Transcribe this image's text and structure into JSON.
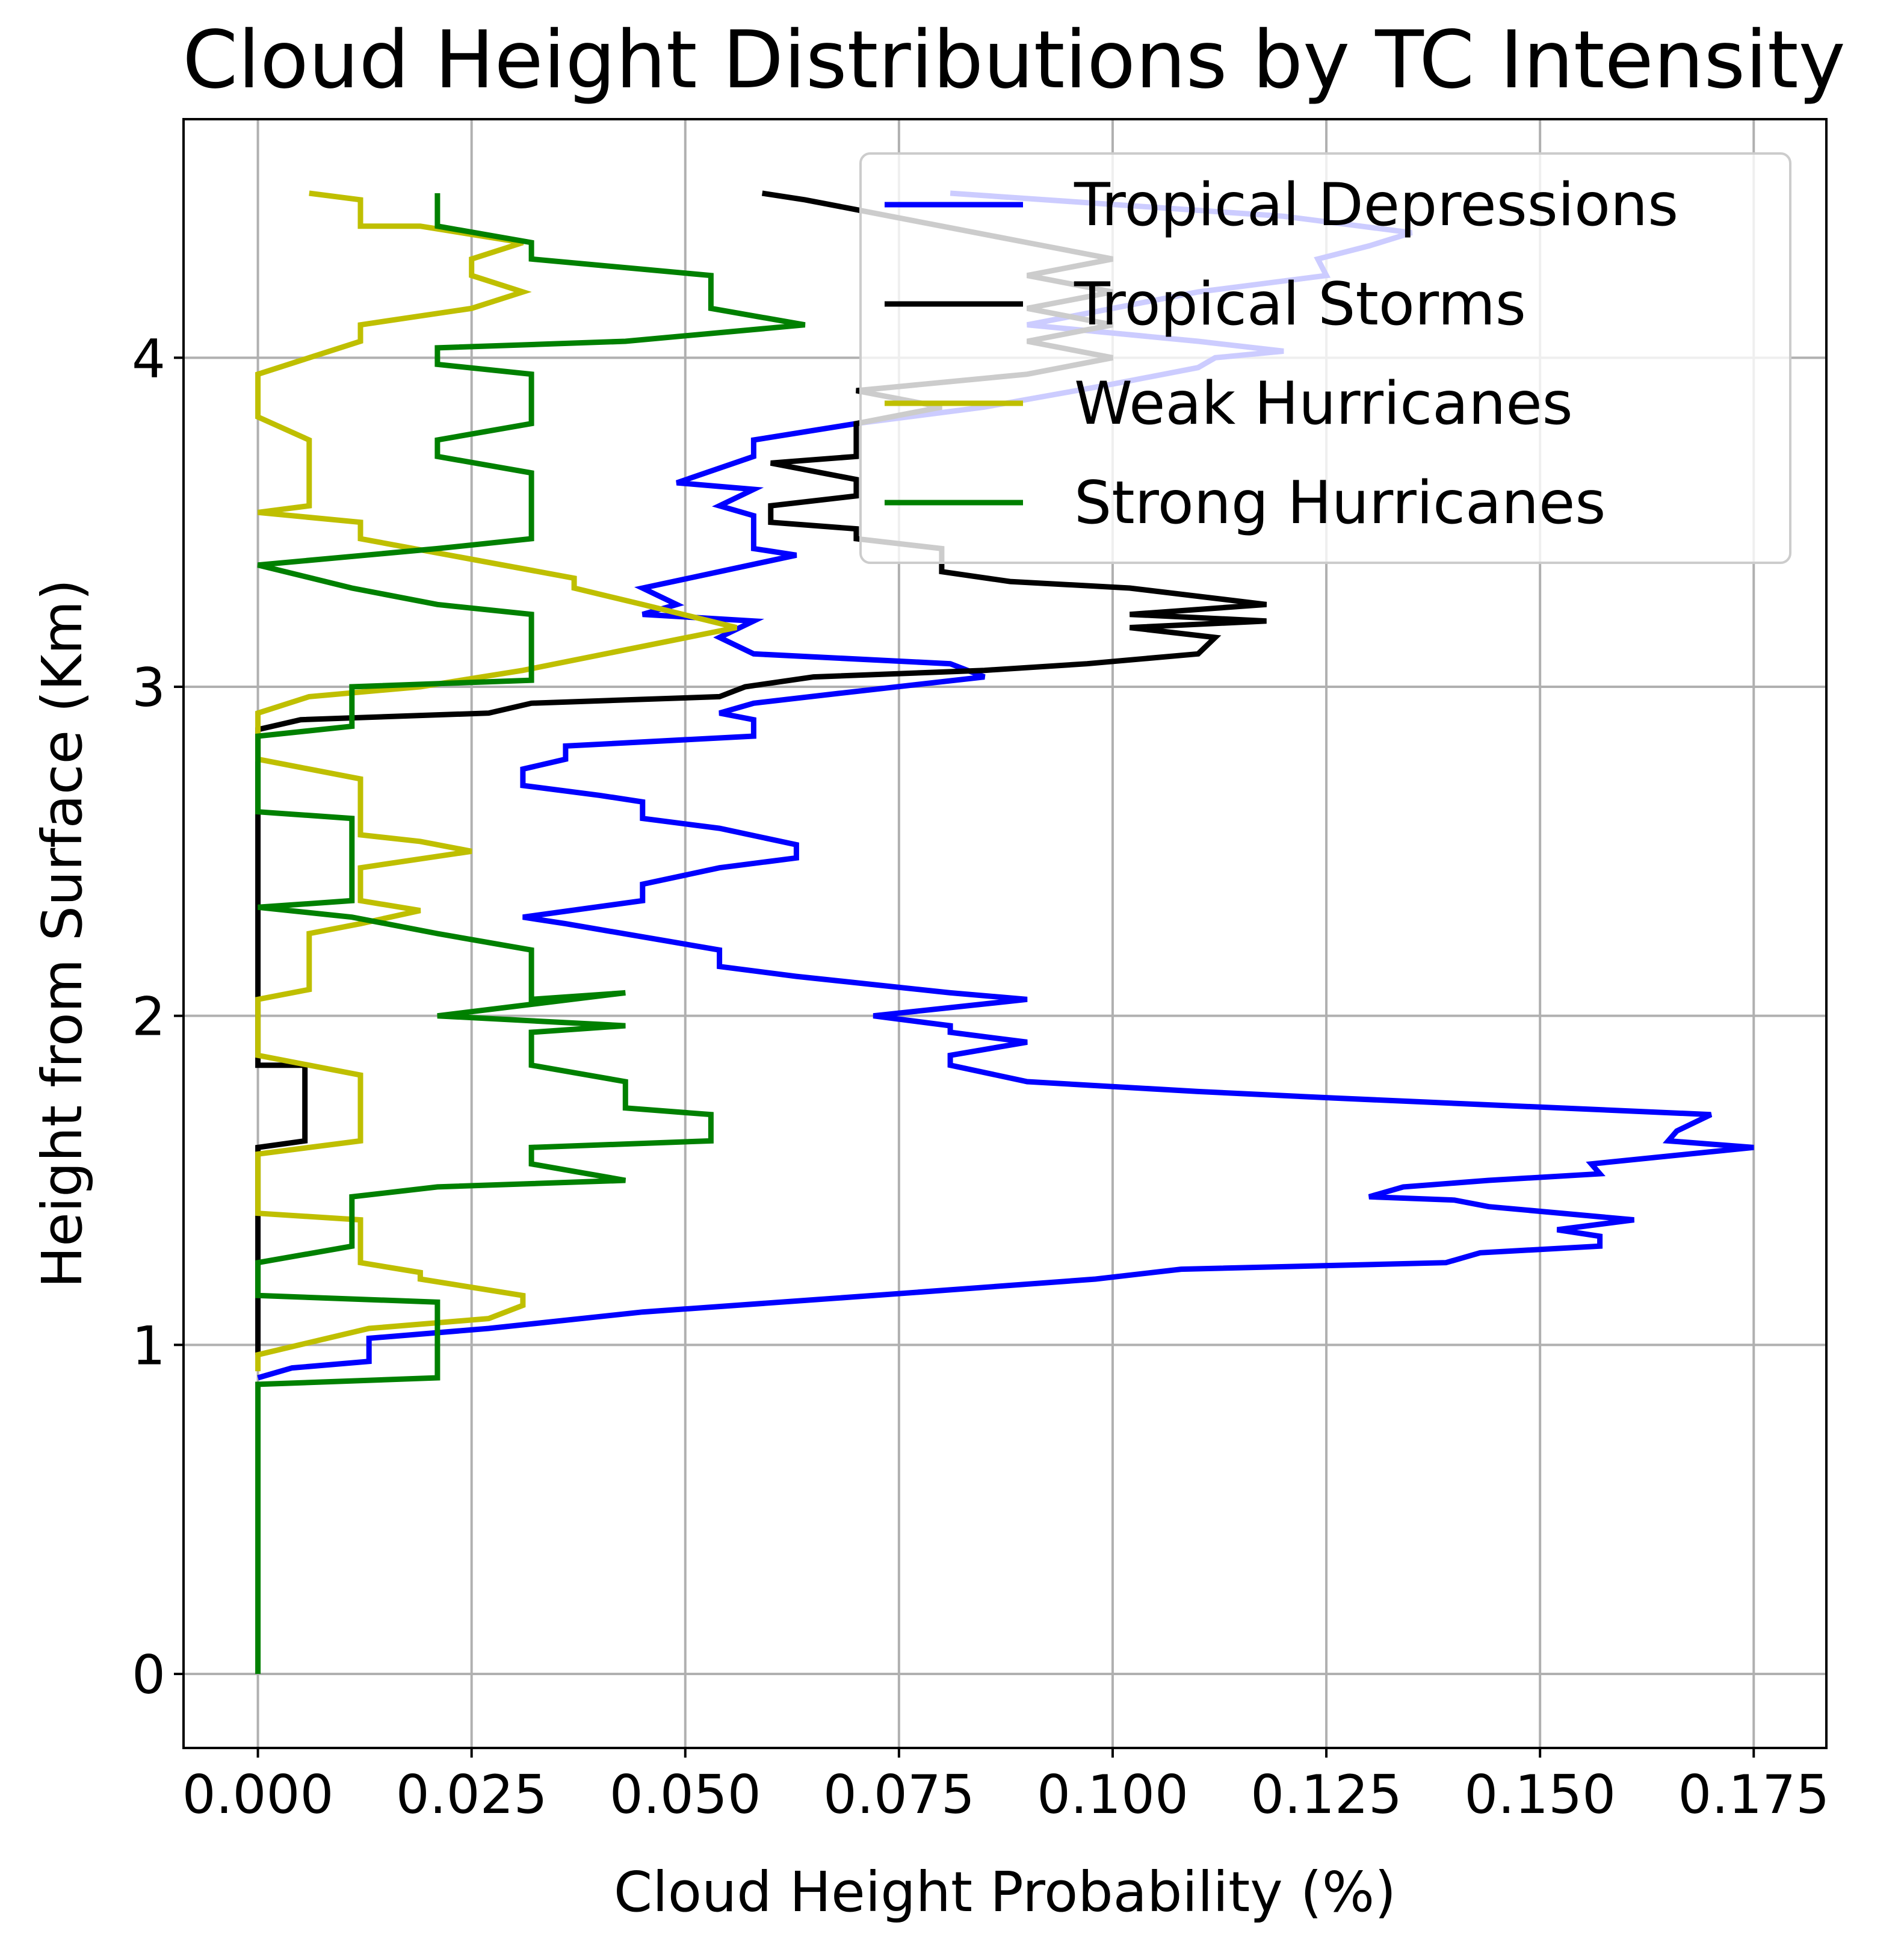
{
  "chart_data": {
    "type": "line",
    "title": "Cloud Height Distributions by TC Intensity",
    "xlabel": "Cloud Height Probability (%)",
    "ylabel": "Height from Surface (Km)",
    "xlim": [
      -0.0087,
      0.1835
    ],
    "ylim": [
      -0.225,
      4.725
    ],
    "xticks": [
      0,
      0.025,
      0.05,
      0.075,
      0.1,
      0.125,
      0.15,
      0.175
    ],
    "xtick_labels": [
      "0.000",
      "0.025",
      "0.050",
      "0.075",
      "0.100",
      "0.125",
      "0.150",
      "0.175"
    ],
    "yticks": [
      0,
      1,
      2,
      3,
      4
    ],
    "ytick_labels": [
      "0",
      "1",
      "2",
      "3",
      "4"
    ],
    "grid": true,
    "legend_position": "top-right",
    "series": [
      {
        "name": "Tropical Depressions",
        "color": "#0000ff",
        "points": [
          [
            0,
            0.9
          ],
          [
            0.004,
            0.93
          ],
          [
            0.013,
            0.95
          ],
          [
            0.013,
            1.02
          ],
          [
            0.027,
            1.05
          ],
          [
            0.045,
            1.1
          ],
          [
            0.072,
            1.15
          ],
          [
            0.098,
            1.2
          ],
          [
            0.108,
            1.23
          ],
          [
            0.139,
            1.25
          ],
          [
            0.143,
            1.28
          ],
          [
            0.157,
            1.3
          ],
          [
            0.157,
            1.33
          ],
          [
            0.152,
            1.35
          ],
          [
            0.161,
            1.38
          ],
          [
            0.144,
            1.42
          ],
          [
            0.14,
            1.44
          ],
          [
            0.13,
            1.45
          ],
          [
            0.134,
            1.48
          ],
          [
            0.144,
            1.5
          ],
          [
            0.157,
            1.52
          ],
          [
            0.156,
            1.55
          ],
          [
            0.175,
            1.6
          ],
          [
            0.165,
            1.62
          ],
          [
            0.166,
            1.65
          ],
          [
            0.17,
            1.7
          ],
          [
            0.126,
            1.75
          ],
          [
            0.11,
            1.77
          ],
          [
            0.09,
            1.8
          ],
          [
            0.081,
            1.85
          ],
          [
            0.081,
            1.88
          ],
          [
            0.09,
            1.92
          ],
          [
            0.081,
            1.95
          ],
          [
            0.081,
            1.97
          ],
          [
            0.072,
            2.0
          ],
          [
            0.09,
            2.05
          ],
          [
            0.081,
            2.07
          ],
          [
            0.063,
            2.12
          ],
          [
            0.054,
            2.15
          ],
          [
            0.054,
            2.2
          ],
          [
            0.036,
            2.28
          ],
          [
            0.031,
            2.3
          ],
          [
            0.045,
            2.35
          ],
          [
            0.045,
            2.4
          ],
          [
            0.054,
            2.45
          ],
          [
            0.063,
            2.48
          ],
          [
            0.063,
            2.52
          ],
          [
            0.054,
            2.57
          ],
          [
            0.045,
            2.6
          ],
          [
            0.045,
            2.65
          ],
          [
            0.04,
            2.67
          ],
          [
            0.031,
            2.7
          ],
          [
            0.031,
            2.75
          ],
          [
            0.036,
            2.78
          ],
          [
            0.036,
            2.82
          ],
          [
            0.058,
            2.85
          ],
          [
            0.058,
            2.9
          ],
          [
            0.054,
            2.92
          ],
          [
            0.058,
            2.95
          ],
          [
            0.068,
            2.98
          ],
          [
            0.085,
            3.03
          ],
          [
            0.081,
            3.07
          ],
          [
            0.058,
            3.1
          ],
          [
            0.054,
            3.15
          ],
          [
            0.058,
            3.2
          ],
          [
            0.045,
            3.22
          ],
          [
            0.049,
            3.25
          ],
          [
            0.045,
            3.3
          ],
          [
            0.054,
            3.35
          ],
          [
            0.063,
            3.4
          ],
          [
            0.058,
            3.42
          ],
          [
            0.058,
            3.45
          ],
          [
            0.058,
            3.48
          ],
          [
            0.058,
            3.52
          ],
          [
            0.054,
            3.55
          ],
          [
            0.058,
            3.6
          ],
          [
            0.049,
            3.62
          ],
          [
            0.058,
            3.7
          ],
          [
            0.058,
            3.75
          ],
          [
            0.07,
            3.8
          ],
          [
            0.085,
            3.85
          ],
          [
            0.1,
            3.92
          ],
          [
            0.11,
            3.97
          ],
          [
            0.112,
            4.0
          ],
          [
            0.12,
            4.02
          ],
          [
            0.11,
            4.05
          ],
          [
            0.09,
            4.1
          ],
          [
            0.1,
            4.15
          ],
          [
            0.11,
            4.2
          ],
          [
            0.125,
            4.25
          ],
          [
            0.124,
            4.3
          ],
          [
            0.13,
            4.34
          ],
          [
            0.135,
            4.38
          ],
          [
            0.12,
            4.43
          ],
          [
            0.081,
            4.5
          ]
        ]
      },
      {
        "name": "Tropical Storms",
        "color": "#000000",
        "points": [
          [
            0,
            0.97
          ],
          [
            0,
            1.6
          ],
          [
            0.0055,
            1.62
          ],
          [
            0.0055,
            1.85
          ],
          [
            0,
            1.85
          ],
          [
            0,
            2.87
          ],
          [
            0.005,
            2.9
          ],
          [
            0.027,
            2.92
          ],
          [
            0.032,
            2.95
          ],
          [
            0.054,
            2.97
          ],
          [
            0.057,
            3.0
          ],
          [
            0.065,
            3.03
          ],
          [
            0.085,
            3.05
          ],
          [
            0.097,
            3.07
          ],
          [
            0.11,
            3.1
          ],
          [
            0.112,
            3.15
          ],
          [
            0.102,
            3.18
          ],
          [
            0.118,
            3.2
          ],
          [
            0.102,
            3.22
          ],
          [
            0.118,
            3.25
          ],
          [
            0.102,
            3.3
          ],
          [
            0.088,
            3.32
          ],
          [
            0.08,
            3.35
          ],
          [
            0.08,
            3.42
          ],
          [
            0.07,
            3.45
          ],
          [
            0.07,
            3.48
          ],
          [
            0.06,
            3.5
          ],
          [
            0.06,
            3.55
          ],
          [
            0.07,
            3.58
          ],
          [
            0.07,
            3.63
          ],
          [
            0.06,
            3.68
          ],
          [
            0.07,
            3.7
          ],
          [
            0.07,
            3.8
          ],
          [
            0.08,
            3.85
          ],
          [
            0.07,
            3.9
          ],
          [
            0.09,
            3.95
          ],
          [
            0.1,
            4.0
          ],
          [
            0.09,
            4.05
          ],
          [
            0.1,
            4.1
          ],
          [
            0.09,
            4.15
          ],
          [
            0.1,
            4.2
          ],
          [
            0.09,
            4.25
          ],
          [
            0.1,
            4.3
          ],
          [
            0.09,
            4.35
          ],
          [
            0.08,
            4.4
          ],
          [
            0.07,
            4.45
          ],
          [
            0.064,
            4.48
          ],
          [
            0.059,
            4.5
          ]
        ]
      },
      {
        "name": "Weak Hurricanes",
        "color": "#bfbf00",
        "points": [
          [
            0,
            0.92
          ],
          [
            0,
            0.97
          ],
          [
            0.013,
            1.05
          ],
          [
            0.027,
            1.08
          ],
          [
            0.031,
            1.12
          ],
          [
            0.031,
            1.15
          ],
          [
            0.019,
            1.2
          ],
          [
            0.019,
            1.22
          ],
          [
            0.012,
            1.25
          ],
          [
            0.012,
            1.38
          ],
          [
            0,
            1.4
          ],
          [
            0,
            1.58
          ],
          [
            0.012,
            1.62
          ],
          [
            0.012,
            1.82
          ],
          [
            0,
            1.88
          ],
          [
            0,
            2.05
          ],
          [
            0.006,
            2.08
          ],
          [
            0.006,
            2.25
          ],
          [
            0.012,
            2.28
          ],
          [
            0.019,
            2.32
          ],
          [
            0.012,
            2.35
          ],
          [
            0.012,
            2.45
          ],
          [
            0.025,
            2.5
          ],
          [
            0.019,
            2.53
          ],
          [
            0.012,
            2.55
          ],
          [
            0.012,
            2.72
          ],
          [
            0,
            2.78
          ],
          [
            0,
            2.92
          ],
          [
            0.006,
            2.97
          ],
          [
            0.019,
            3.0
          ],
          [
            0.031,
            3.05
          ],
          [
            0.056,
            3.18
          ],
          [
            0.045,
            3.25
          ],
          [
            0.037,
            3.3
          ],
          [
            0.037,
            3.33
          ],
          [
            0.012,
            3.45
          ],
          [
            0.012,
            3.5
          ],
          [
            0,
            3.53
          ],
          [
            0.006,
            3.55
          ],
          [
            0.006,
            3.75
          ],
          [
            0,
            3.82
          ],
          [
            0,
            3.95
          ],
          [
            0.006,
            4.0
          ],
          [
            0.012,
            4.05
          ],
          [
            0.012,
            4.1
          ],
          [
            0.025,
            4.15
          ],
          [
            0.031,
            4.2
          ],
          [
            0.025,
            4.25
          ],
          [
            0.025,
            4.3
          ],
          [
            0.031,
            4.35
          ],
          [
            0.019,
            4.4
          ],
          [
            0.012,
            4.4
          ],
          [
            0.012,
            4.48
          ],
          [
            0.006,
            4.5
          ]
        ]
      },
      {
        "name": "Strong Hurricanes",
        "color": "#008000",
        "points": [
          [
            0,
            0.0
          ],
          [
            0,
            0.88
          ],
          [
            0.021,
            0.9
          ],
          [
            0.021,
            1.13
          ],
          [
            0,
            1.15
          ],
          [
            0,
            1.25
          ],
          [
            0.011,
            1.3
          ],
          [
            0.011,
            1.45
          ],
          [
            0.021,
            1.48
          ],
          [
            0.043,
            1.5
          ],
          [
            0.032,
            1.55
          ],
          [
            0.032,
            1.6
          ],
          [
            0.053,
            1.62
          ],
          [
            0.053,
            1.7
          ],
          [
            0.043,
            1.72
          ],
          [
            0.043,
            1.8
          ],
          [
            0.032,
            1.85
          ],
          [
            0.032,
            1.95
          ],
          [
            0.043,
            1.97
          ],
          [
            0.021,
            2.0
          ],
          [
            0.043,
            2.07
          ],
          [
            0.032,
            2.05
          ],
          [
            0.032,
            2.2
          ],
          [
            0.021,
            2.25
          ],
          [
            0.011,
            2.3
          ],
          [
            0,
            2.33
          ],
          [
            0.011,
            2.35
          ],
          [
            0.011,
            2.6
          ],
          [
            0,
            2.62
          ],
          [
            0,
            2.85
          ],
          [
            0.011,
            2.88
          ],
          [
            0.011,
            3.0
          ],
          [
            0.032,
            3.02
          ],
          [
            0.032,
            3.22
          ],
          [
            0.021,
            3.25
          ],
          [
            0.011,
            3.3
          ],
          [
            0,
            3.37
          ],
          [
            0.021,
            3.42
          ],
          [
            0.032,
            3.45
          ],
          [
            0.032,
            3.65
          ],
          [
            0.021,
            3.7
          ],
          [
            0.021,
            3.75
          ],
          [
            0.032,
            3.8
          ],
          [
            0.032,
            3.95
          ],
          [
            0.021,
            3.98
          ],
          [
            0.021,
            4.03
          ],
          [
            0.043,
            4.05
          ],
          [
            0.064,
            4.1
          ],
          [
            0.053,
            4.15
          ],
          [
            0.053,
            4.25
          ],
          [
            0.032,
            4.3
          ],
          [
            0.032,
            4.35
          ],
          [
            0.021,
            4.4
          ],
          [
            0.021,
            4.5
          ]
        ]
      }
    ]
  }
}
